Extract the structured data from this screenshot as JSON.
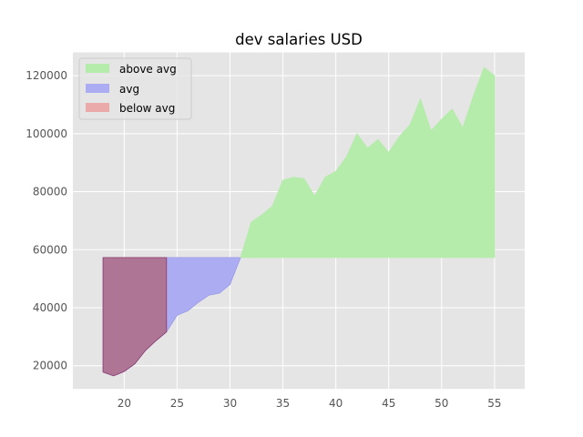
{
  "chart_data": {
    "type": "area",
    "title": "dev salaries USD",
    "xlabel": "",
    "ylabel": "",
    "xlim": [
      15.15,
      57.85
    ],
    "ylim": [
      12000,
      128000
    ],
    "xticks": [
      20,
      25,
      30,
      35,
      40,
      45,
      50,
      55
    ],
    "yticks": [
      20000,
      40000,
      60000,
      80000,
      100000,
      120000
    ],
    "grid": true,
    "legend_position": "top-left",
    "baseline": 57287,
    "x": [
      18,
      19,
      20,
      21,
      22,
      23,
      24,
      25,
      26,
      27,
      28,
      29,
      30,
      31,
      32,
      33,
      34,
      35,
      36,
      37,
      38,
      39,
      40,
      41,
      42,
      43,
      44,
      45,
      46,
      47,
      48,
      49,
      50,
      51,
      52,
      53,
      54,
      55
    ],
    "values": [
      17784,
      16500,
      18012,
      20628,
      25206,
      28615,
      31658,
      37391,
      38908,
      41829,
      44300,
      45000,
      48000,
      57287,
      69500,
      72000,
      75000,
      84000,
      85000,
      84500,
      78500,
      85000,
      87000,
      92000,
      100000,
      95000,
      98000,
      93500,
      99000,
      103000,
      112000,
      101000,
      105000,
      108500,
      102000,
      113000,
      122800,
      120000
    ],
    "series": [
      {
        "name": "above avg",
        "color": "#b5ebab",
        "edge": "#b5ebab"
      },
      {
        "name": "avg",
        "color": "#acacf2",
        "edge": "#9a9ae8"
      },
      {
        "name": "below avg",
        "color": "#eaaaaa",
        "edge": "#c07aa0"
      }
    ]
  }
}
